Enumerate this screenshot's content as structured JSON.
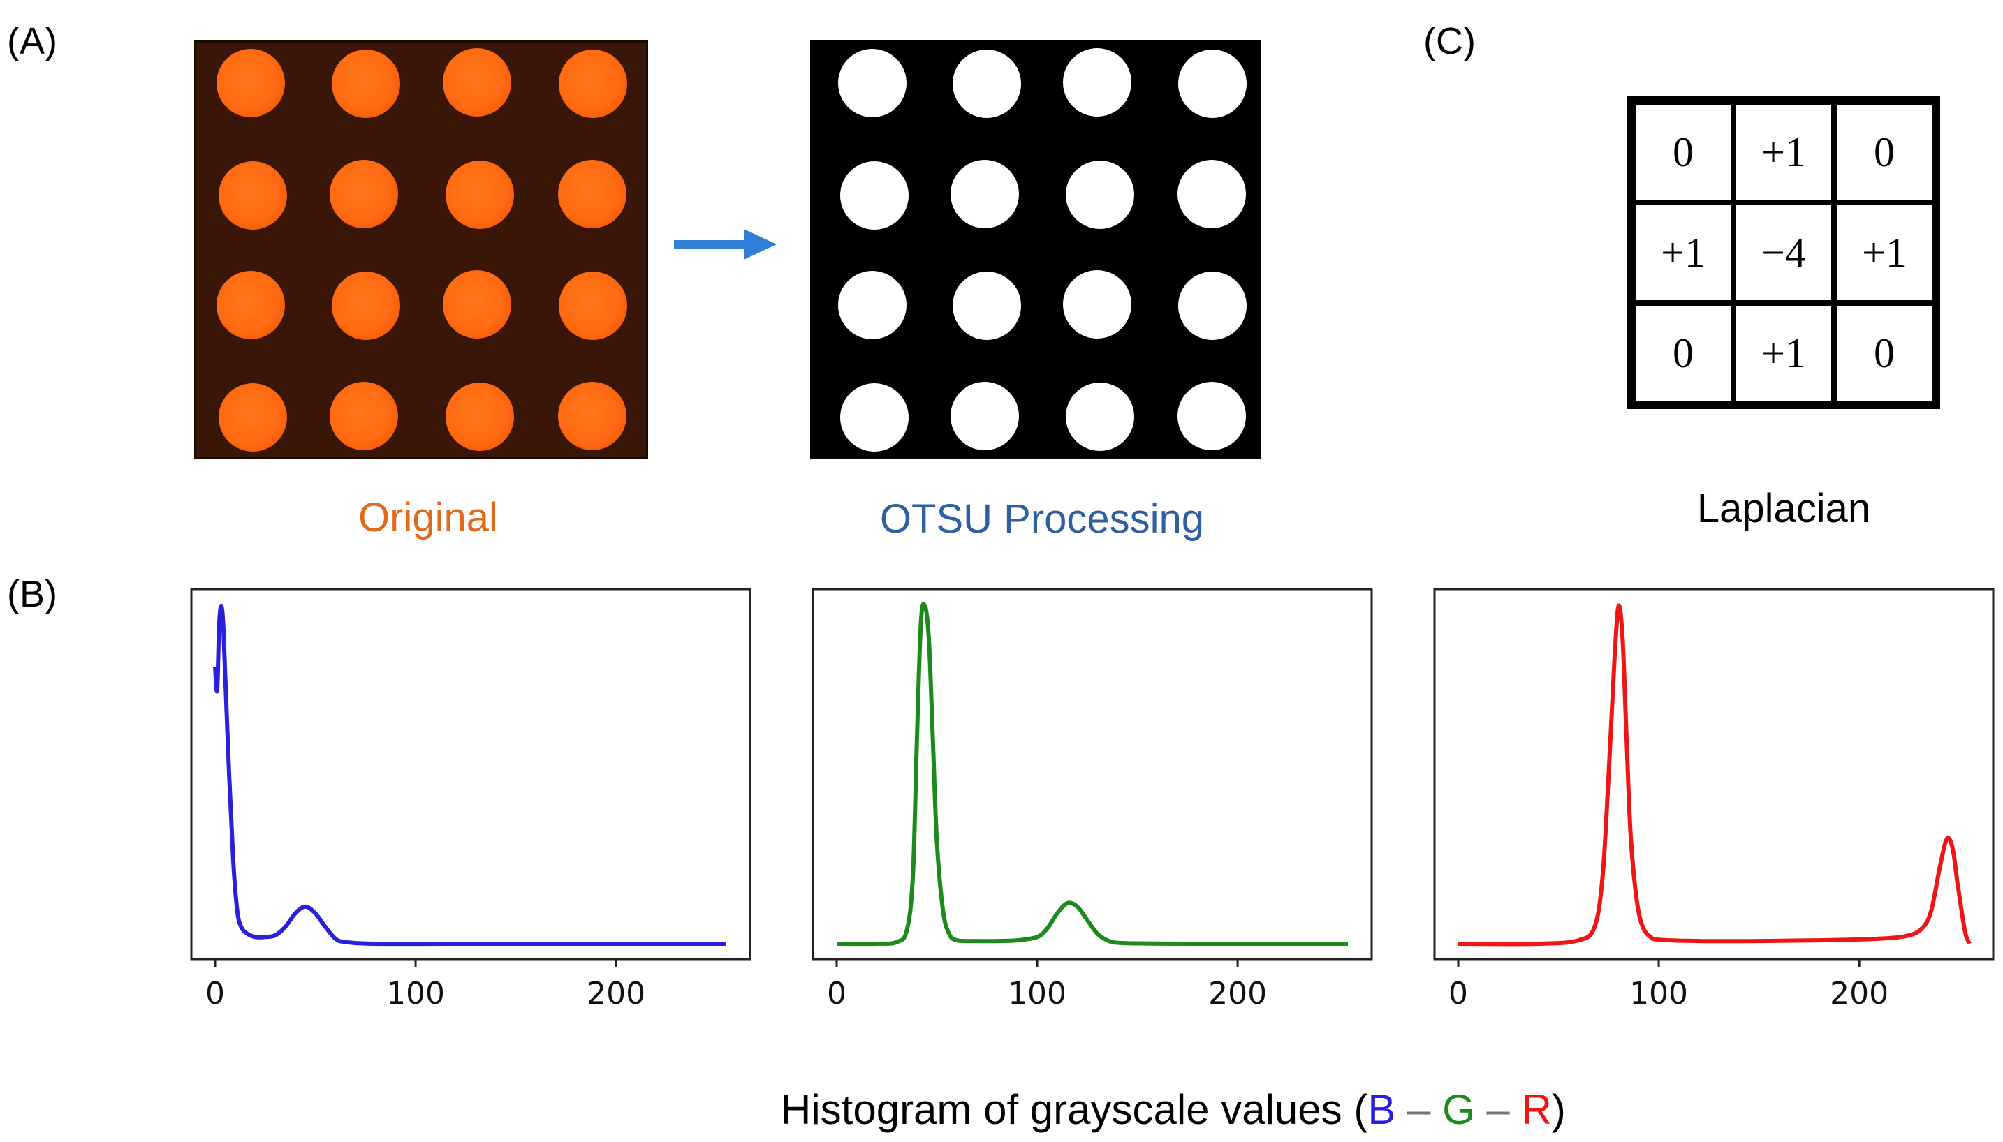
{
  "panels": {
    "a": {
      "label": "(A)",
      "original_caption": "Original",
      "otsu_caption": "OTSU Processing",
      "grid_rows": 4,
      "grid_cols": 4
    },
    "b": {
      "label": "(B)",
      "title_prefix": "Histogram of grayscale values (",
      "title_b": "B",
      "title_sep1": " – ",
      "title_g": "G",
      "title_sep2": " – ",
      "title_r": "R",
      "title_suffix": ")"
    },
    "c": {
      "label": "(C)",
      "caption": "Laplacian",
      "kernel": [
        [
          "0",
          "+1",
          "0"
        ],
        [
          "+1",
          "−4",
          "+1"
        ],
        [
          "0",
          "+1",
          "0"
        ]
      ]
    }
  },
  "colors": {
    "original_caption": "#e0691c",
    "otsu_caption": "#2f5f9e",
    "arrow": "#2f7fd6",
    "blue_channel": "#2a1fdc",
    "green_channel": "#1e8a1e",
    "red_channel": "#f01414"
  },
  "chart_data": [
    {
      "type": "line",
      "name": "Blue channel histogram",
      "color": "#2a1fdc",
      "xlim": [
        0,
        255
      ],
      "ylim": [
        0,
        1
      ],
      "x_ticks": [
        "0",
        "100",
        "200"
      ],
      "x": [
        0,
        1,
        2,
        3,
        4,
        5,
        7,
        9,
        11,
        13,
        16,
        20,
        25,
        30,
        35,
        40,
        45,
        50,
        55,
        60,
        65,
        80,
        120,
        160,
        200,
        255
      ],
      "y": [
        0.82,
        0.75,
        0.94,
        1.0,
        0.95,
        0.8,
        0.5,
        0.25,
        0.1,
        0.05,
        0.03,
        0.02,
        0.02,
        0.025,
        0.05,
        0.09,
        0.11,
        0.09,
        0.05,
        0.015,
        0.005,
        0.0,
        0.0,
        0.0,
        0.0,
        0.0
      ]
    },
    {
      "type": "line",
      "name": "Green channel histogram",
      "color": "#1e8a1e",
      "xlim": [
        0,
        255
      ],
      "ylim": [
        0,
        1
      ],
      "x_ticks": [
        "0",
        "100",
        "200"
      ],
      "x": [
        0,
        20,
        30,
        35,
        38,
        40,
        42,
        44,
        46,
        48,
        50,
        53,
        56,
        60,
        70,
        80,
        90,
        100,
        105,
        110,
        115,
        120,
        125,
        130,
        135,
        140,
        150,
        175,
        200,
        255
      ],
      "y": [
        0.0,
        0.0,
        0.005,
        0.04,
        0.2,
        0.6,
        0.95,
        1.0,
        0.9,
        0.6,
        0.3,
        0.1,
        0.03,
        0.01,
        0.008,
        0.008,
        0.01,
        0.02,
        0.045,
        0.09,
        0.12,
        0.11,
        0.07,
        0.03,
        0.01,
        0.003,
        0.001,
        0.0,
        0.0,
        0.0
      ]
    },
    {
      "type": "line",
      "name": "Red channel histogram",
      "color": "#f01414",
      "xlim": [
        0,
        255
      ],
      "ylim": [
        0,
        1
      ],
      "x_ticks": [
        "0",
        "100",
        "200"
      ],
      "x": [
        0,
        40,
        60,
        68,
        72,
        75,
        78,
        80,
        82,
        84,
        86,
        89,
        92,
        96,
        100,
        120,
        150,
        180,
        210,
        225,
        232,
        236,
        240,
        243,
        245,
        247,
        249,
        251,
        253,
        255
      ],
      "y": [
        0.0,
        0.0,
        0.01,
        0.05,
        0.2,
        0.5,
        0.85,
        1.0,
        0.9,
        0.6,
        0.32,
        0.13,
        0.05,
        0.02,
        0.012,
        0.008,
        0.008,
        0.01,
        0.015,
        0.025,
        0.05,
        0.1,
        0.22,
        0.3,
        0.31,
        0.27,
        0.18,
        0.1,
        0.03,
        0.0
      ]
    }
  ]
}
